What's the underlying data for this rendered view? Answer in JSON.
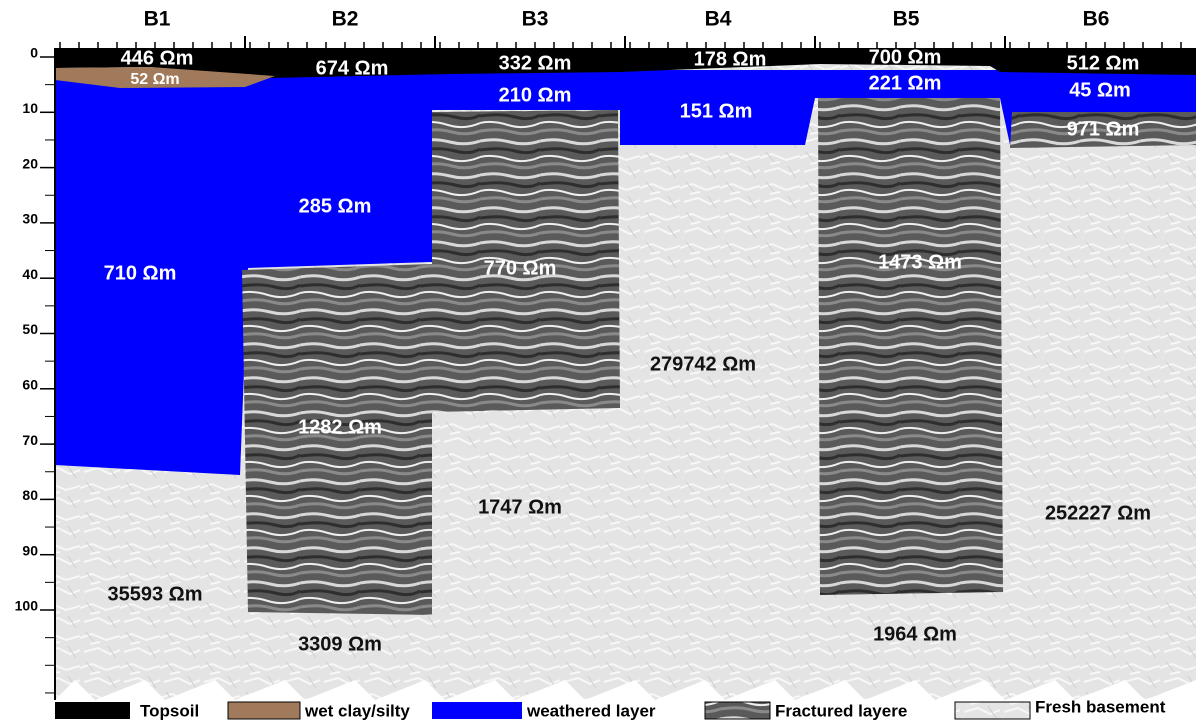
{
  "columns": [
    "B1",
    "B2",
    "B3",
    "B4",
    "B5",
    "B6"
  ],
  "depth_ticks": [
    0,
    10,
    20,
    30,
    40,
    50,
    60,
    70,
    80,
    90,
    100
  ],
  "labels": [
    "446 Ωm",
    "52 Ωm",
    "674 Ωm",
    "332 Ωm",
    "178 Ωm",
    "700 Ωm",
    "512 Ωm",
    "221 Ωm",
    "210 Ωm",
    "151 Ωm",
    "45 Ωm",
    "971 Ωm",
    "285 Ωm",
    "710 Ωm",
    "770 Ωm",
    "1473 Ωm",
    "279742 Ωm",
    "1282 Ωm",
    "1747 Ωm",
    "252227 Ωm",
    "35593 Ωm",
    "3309 Ωm",
    "1964 Ωm"
  ],
  "legend": [
    "Topsoil",
    "wet clay/silty",
    "weathered layer",
    "Fractured layere",
    "Fresh basement"
  ]
}
